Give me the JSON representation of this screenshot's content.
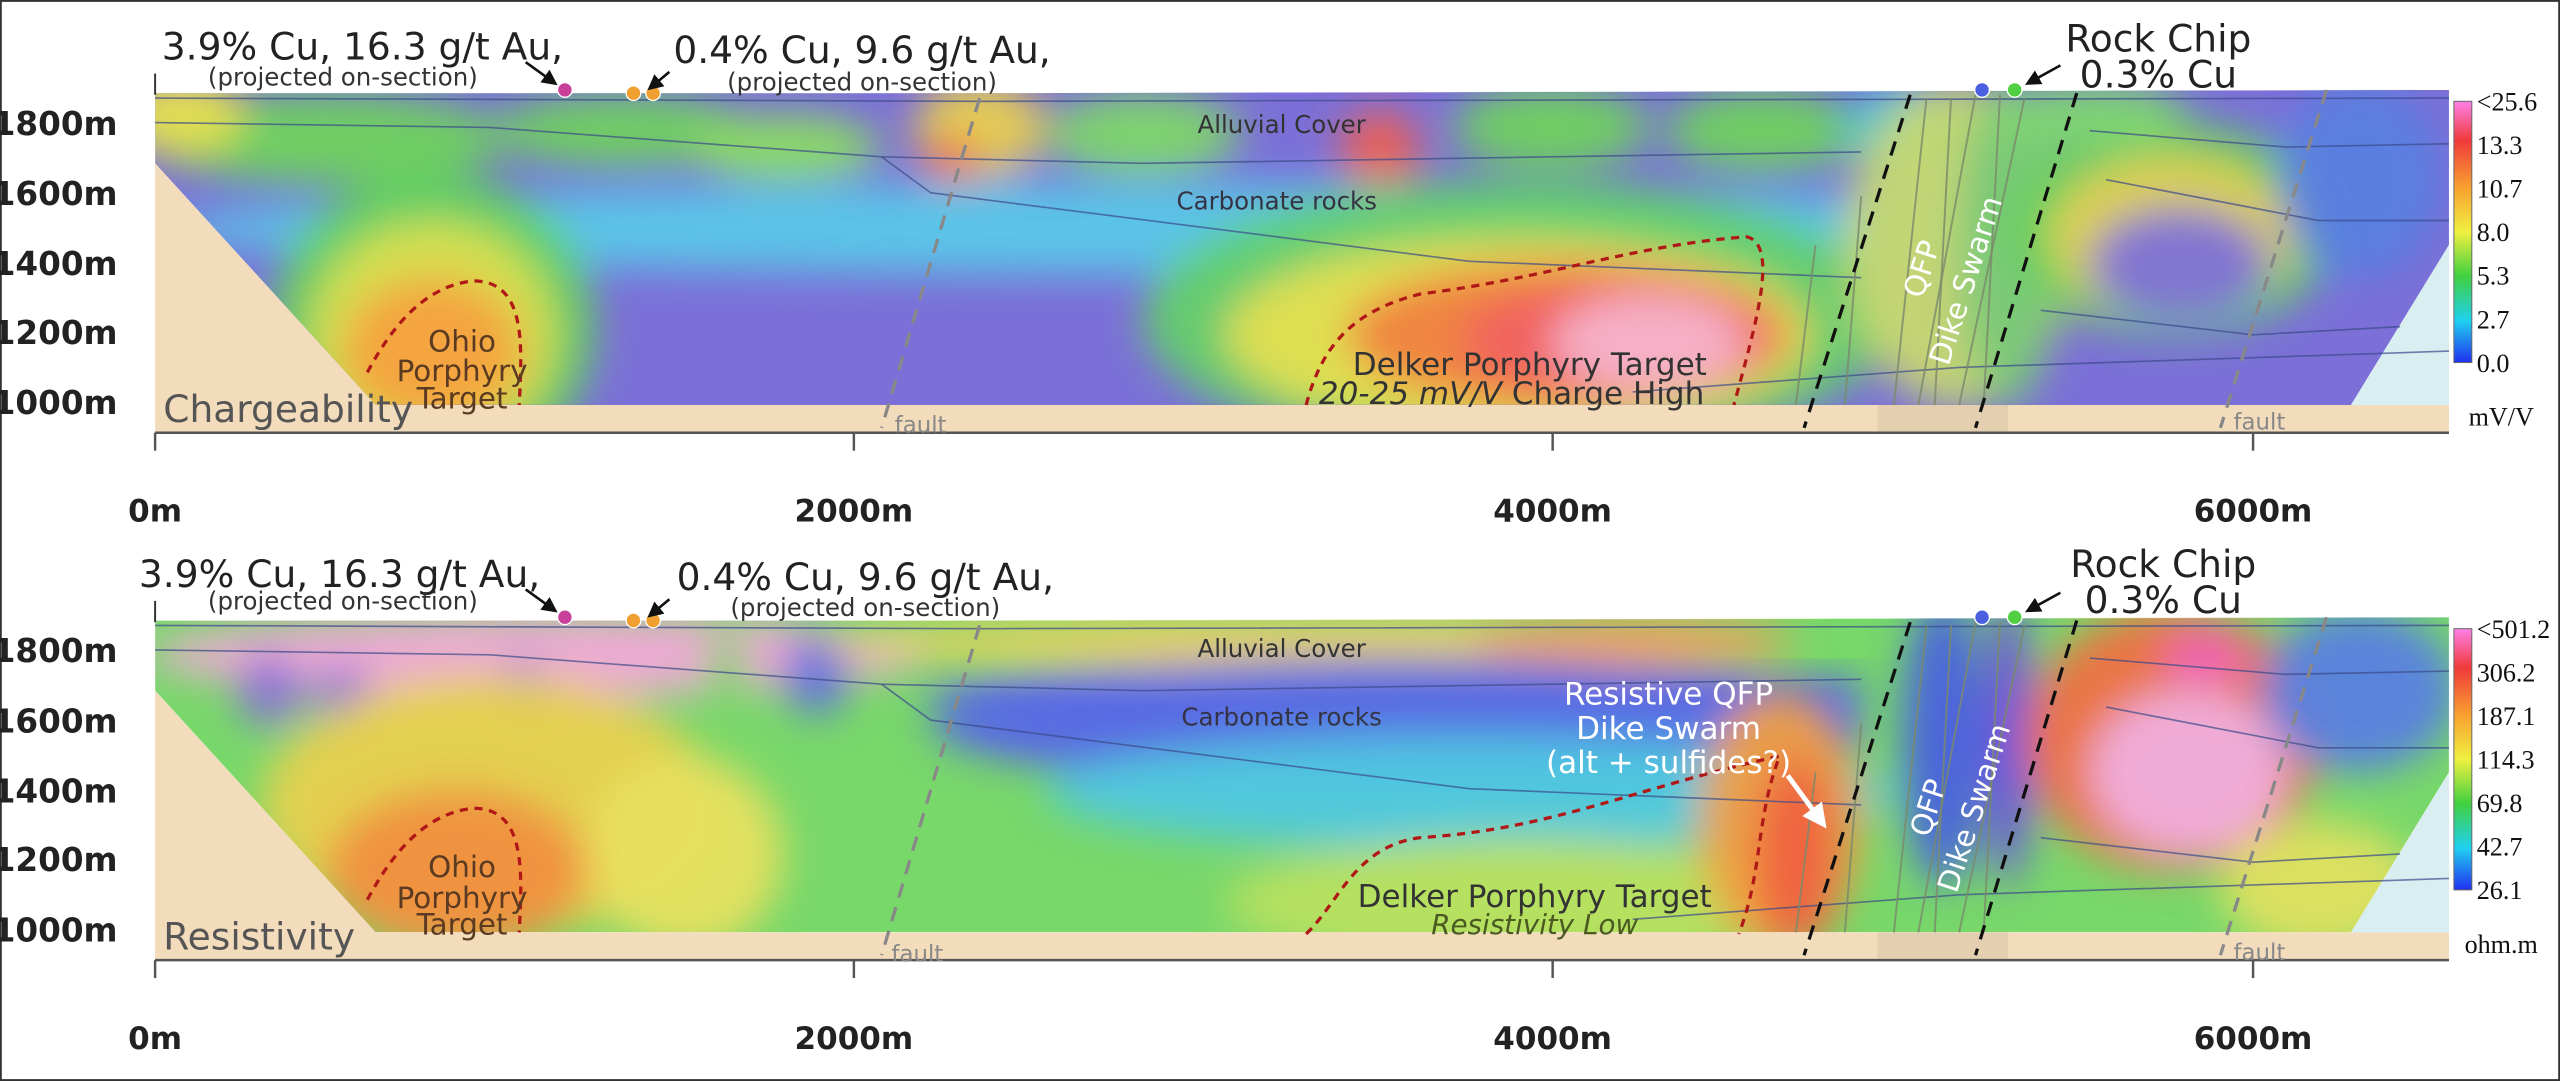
{
  "panels": [
    {
      "title": "Chargeability",
      "unit": "mV/V",
      "y_labels": [
        "1800m",
        "1600m",
        "1400m",
        "1200m",
        "1000m"
      ],
      "x_labels": [
        "0m",
        "2000m",
        "4000m",
        "6000m"
      ],
      "colorbar": [
        "<25.6",
        "13.3",
        "10.7",
        "8.0",
        "5.3",
        "2.7",
        "0.0"
      ],
      "labels": [
        "3.9% Cu, 16.3 g/t Au,",
        "(projected on-section)",
        "0.4% Cu, 9.6 g/t Au,",
        "(projected on-section)",
        "Rock Chip",
        "0.3% Cu",
        "Alluvial Cover",
        "Carbonate rocks",
        "Ohio",
        "Porphyry",
        "Target",
        "Delker Porphyry Target",
        "20-25 mV/V",
        "Charge High",
        "QFP",
        "Dike Swarm",
        "fault",
        "fault"
      ]
    },
    {
      "title": "Resistivity",
      "unit": "ohm.m",
      "y_labels": [
        "1800m",
        "1600m",
        "1400m",
        "1200m",
        "1000m"
      ],
      "x_labels": [
        "0m",
        "2000m",
        "4000m",
        "6000m"
      ],
      "colorbar": [
        "<501.2",
        "306.2",
        "187.1",
        "114.3",
        "69.8",
        "42.7",
        "26.1"
      ],
      "labels": [
        "3.9% Cu, 16.3 g/t Au,",
        "(projected on-section)",
        "0.4% Cu, 9.6 g/t Au,",
        "(projected on-section)",
        "Rock Chip",
        "0.3% Cu",
        "Alluvial Cover",
        "Carbonate rocks",
        "Ohio",
        "Porphyry",
        "Target",
        "Delker Porphyry Target",
        "Resistivity Low",
        "QFP",
        "Dike Swarm",
        "fault",
        "fault",
        "Resistive QFP",
        "Dike Swarm",
        "(alt + sulfides?)"
      ]
    }
  ]
}
